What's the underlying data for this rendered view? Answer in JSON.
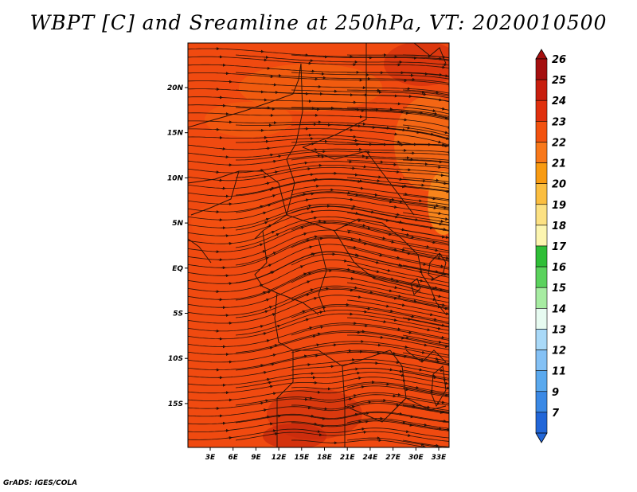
{
  "title": "WBPT [C] and Sreamline at 250hPa, VT: 2020010500",
  "credit": "GrADS: IGES/COLA",
  "map": {
    "lat_labels": [
      "20N",
      "15N",
      "10N",
      "5N",
      "EQ",
      "5S",
      "10S",
      "15S"
    ],
    "lon_labels": [
      "3E",
      "6E",
      "9E",
      "12E",
      "15E",
      "18E",
      "21E",
      "24E",
      "27E",
      "30E",
      "33E"
    ],
    "lon_range_deg_east": [
      0,
      35
    ],
    "lat_range_deg": [
      -20,
      25
    ],
    "background_fill": "#f04a10",
    "stream_color": "#2a1208"
  },
  "colorbar": {
    "levels": [
      "26",
      "25",
      "24",
      "23",
      "22",
      "21",
      "20",
      "19",
      "18",
      "17",
      "16",
      "15",
      "14",
      "13",
      "12",
      "11",
      "9",
      "7"
    ],
    "colors": [
      "#a50f0f",
      "#c81e0e",
      "#e0300e",
      "#f2520f",
      "#f8781a",
      "#f89b12",
      "#fbbe40",
      "#fce183",
      "#fcf5b0",
      "#2fbe37",
      "#5bd25d",
      "#a7eca2",
      "#e7fbf1",
      "#a9d9f8",
      "#84c1f5",
      "#5aa9ee",
      "#3b89e5",
      "#2266d8"
    ]
  }
}
